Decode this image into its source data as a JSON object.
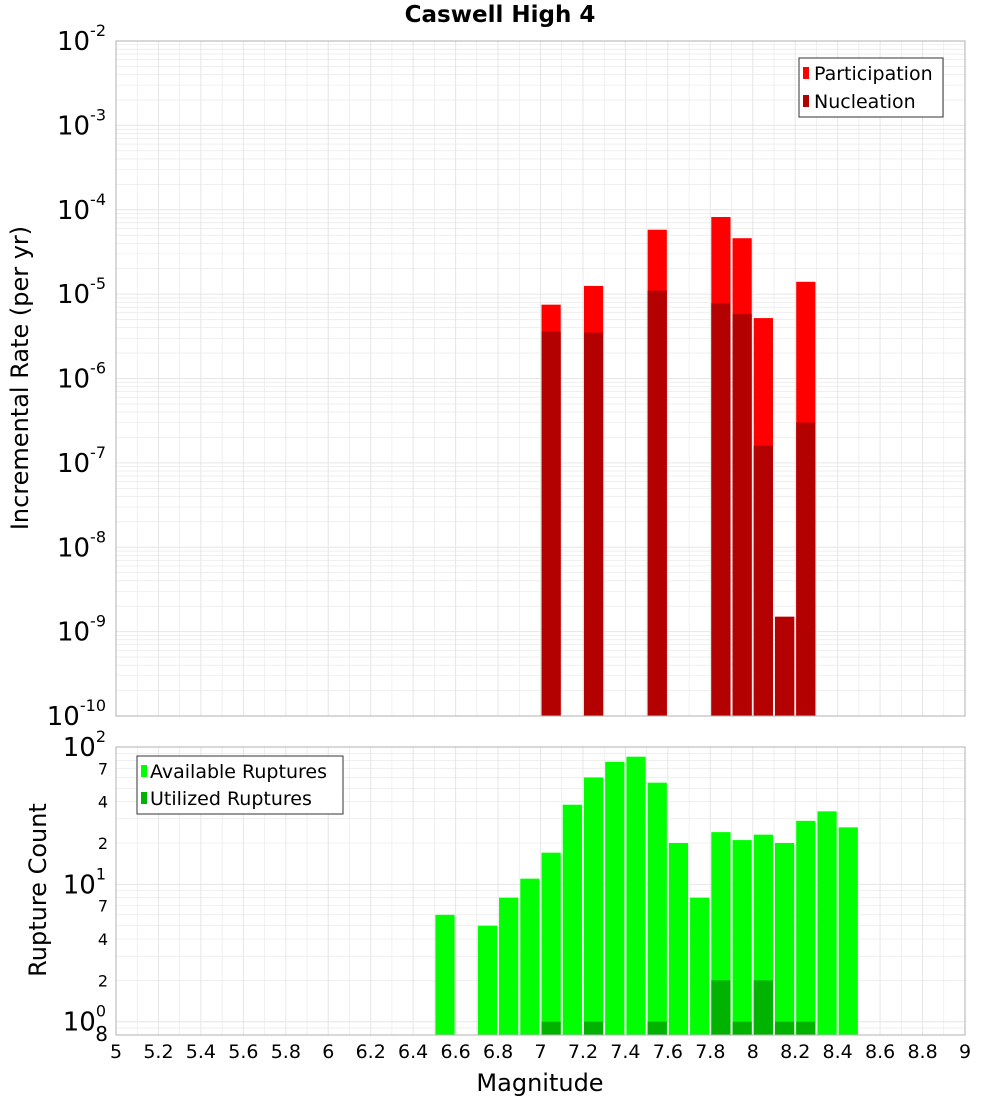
{
  "title": "Caswell High 4",
  "colors": {
    "participation": "#ff0000",
    "nucleation": "#b30000",
    "available": "#00ff00",
    "utilized": "#00b300",
    "grid": "#e6e6e6",
    "frame": "#b0b0b0"
  },
  "chart_data": [
    {
      "type": "bar",
      "ylabel": "Incremental Rate (per yr)",
      "yscale": "log",
      "ylim": [
        1e-10,
        0.01
      ],
      "y_ticks": [
        {
          "base": "10",
          "exp": "-2"
        },
        {
          "base": "10",
          "exp": "-3"
        },
        {
          "base": "10",
          "exp": "-4"
        },
        {
          "base": "10",
          "exp": "-5"
        },
        {
          "base": "10",
          "exp": "-6"
        },
        {
          "base": "10",
          "exp": "-7"
        },
        {
          "base": "10",
          "exp": "-8"
        },
        {
          "base": "10",
          "exp": "-9"
        },
        {
          "base": "10",
          "exp": "-10"
        }
      ],
      "xlim": [
        5,
        9
      ],
      "bin_width": 0.1,
      "legend": {
        "position": "top-right",
        "entries": [
          "Participation",
          "Nucleation"
        ]
      },
      "series": [
        {
          "name": "Participation",
          "x": [
            7.05,
            7.25,
            7.55,
            7.85,
            7.95,
            8.05,
            8.15,
            8.25
          ],
          "values": [
            7.5e-06,
            1.25e-05,
            5.8e-05,
            8.2e-05,
            4.6e-05,
            5.2e-06,
            1.5e-09,
            1.4e-05
          ]
        },
        {
          "name": "Nucleation",
          "x": [
            7.05,
            7.25,
            7.55,
            7.85,
            7.95,
            8.05,
            8.15,
            8.25
          ],
          "values": [
            3.6e-06,
            3.5e-06,
            1.1e-05,
            7.8e-06,
            5.8e-06,
            1.6e-07,
            1.5e-09,
            3e-07
          ]
        }
      ]
    },
    {
      "type": "bar",
      "ylabel": "Rupture Count",
      "xlabel": "Magnitude",
      "yscale": "log",
      "ylim": [
        0.8,
        100
      ],
      "x_ticks": [
        "5",
        "5.2",
        "5.4",
        "5.6",
        "5.8",
        "6",
        "6.2",
        "6.4",
        "6.6",
        "6.8",
        "7",
        "7.2",
        "7.4",
        "7.6",
        "7.8",
        "8",
        "8.2",
        "8.4",
        "8.6",
        "8.8",
        "9"
      ],
      "y_major_ticks": [
        {
          "base": "10",
          "exp": "2"
        },
        {
          "base": "10",
          "exp": "1"
        },
        {
          "base": "10",
          "exp": "0"
        }
      ],
      "y_minor_ticks": [
        "7",
        "4",
        "2",
        "7",
        "4",
        "2",
        "8"
      ],
      "xlim": [
        5,
        9
      ],
      "bin_width": 0.1,
      "legend": {
        "position": "top-left",
        "entries": [
          "Available Ruptures",
          "Utilized Ruptures"
        ]
      },
      "series": [
        {
          "name": "Available Ruptures",
          "x": [
            6.55,
            6.75,
            6.85,
            6.95,
            7.05,
            7.15,
            7.25,
            7.35,
            7.45,
            7.55,
            7.65,
            7.75,
            7.85,
            7.95,
            8.05,
            8.15,
            8.25,
            8.35,
            8.45
          ],
          "values": [
            6,
            5,
            8,
            11,
            17,
            38,
            60,
            78,
            85,
            55,
            20,
            8,
            24,
            21,
            23,
            20,
            29,
            34,
            26
          ]
        },
        {
          "name": "Utilized Ruptures",
          "x": [
            7.05,
            7.25,
            7.55,
            7.85,
            7.95,
            8.05,
            8.15,
            8.25
          ],
          "values": [
            1,
            1,
            1,
            2,
            1,
            2,
            1,
            1
          ]
        }
      ]
    }
  ]
}
